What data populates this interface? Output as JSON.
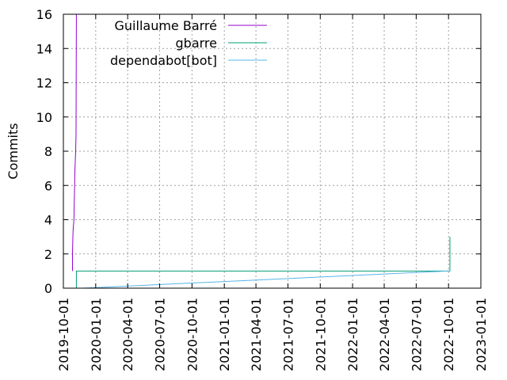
{
  "chart_data": {
    "type": "line",
    "title": "",
    "xlabel": "",
    "ylabel": "Commits",
    "ylim": [
      0,
      16
    ],
    "yticks": [
      0,
      2,
      4,
      6,
      8,
      10,
      12,
      14,
      16
    ],
    "xlim": [
      "2019-10-01",
      "2023-01-01"
    ],
    "xticks": [
      "2019-10-01",
      "2020-01-01",
      "2020-04-01",
      "2020-07-01",
      "2020-10-01",
      "2021-01-01",
      "2021-04-01",
      "2021-07-01",
      "2021-10-01",
      "2022-01-01",
      "2022-04-01",
      "2022-07-01",
      "2022-10-01",
      "2023-01-01"
    ],
    "grid": true,
    "legend_position": "top-left",
    "series": [
      {
        "name": "Guillaume Barré",
        "color": "#9400d3",
        "points": [
          [
            "2019-10-27",
            1
          ],
          [
            "2019-10-27",
            2
          ],
          [
            "2019-10-28",
            3
          ],
          [
            "2019-10-29",
            3.5
          ],
          [
            "2019-10-31",
            4
          ],
          [
            "2019-11-01",
            5
          ],
          [
            "2019-11-02",
            6
          ],
          [
            "2019-11-03",
            7
          ],
          [
            "2019-11-05",
            8
          ],
          [
            "2019-11-06",
            9
          ],
          [
            "2019-11-07",
            16
          ]
        ]
      },
      {
        "name": "gbarre",
        "color": "#009e73",
        "points": [
          [
            "2019-11-07",
            0
          ],
          [
            "2019-11-07",
            1
          ],
          [
            "2022-10-05",
            1
          ],
          [
            "2022-10-05",
            3
          ]
        ]
      },
      {
        "name": "dependabot[bot]",
        "color": "#56b4e9",
        "points": [
          [
            "2019-11-25",
            0
          ],
          [
            "2022-09-28",
            1
          ],
          [
            "2022-10-05",
            1
          ]
        ]
      }
    ]
  }
}
